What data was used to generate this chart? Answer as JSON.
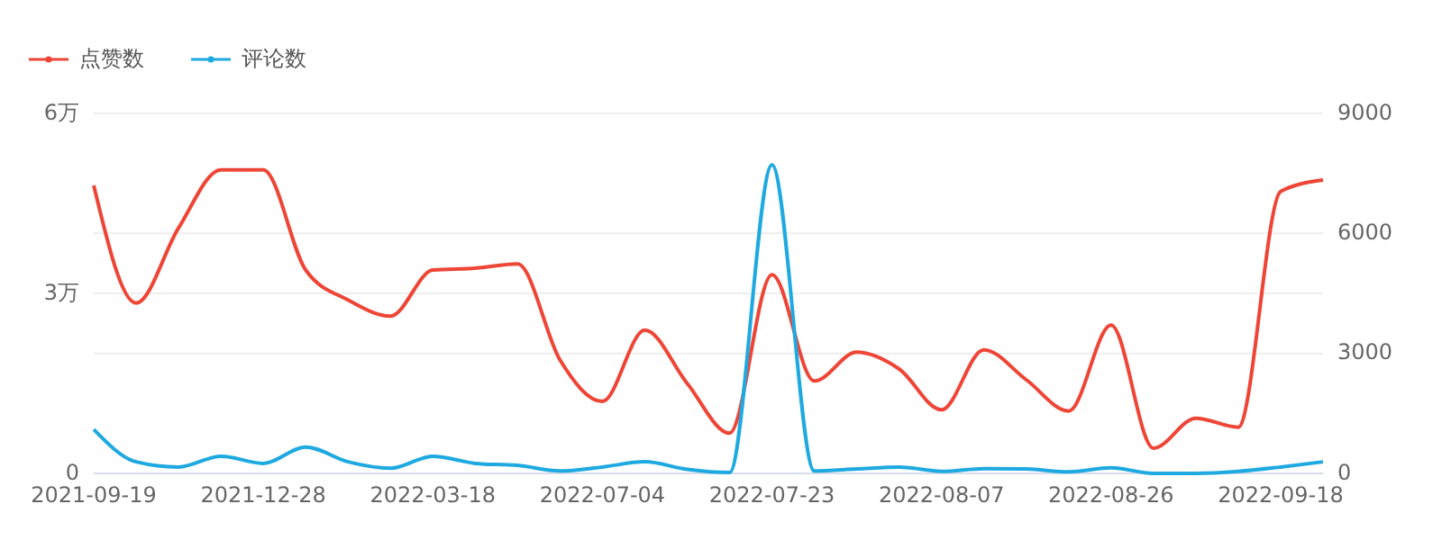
{
  "chart_data": {
    "type": "line",
    "categories": [
      "2021-09-19",
      null,
      null,
      null,
      "2021-12-28",
      null,
      null,
      null,
      "2022-03-18",
      null,
      null,
      null,
      "2022-07-04",
      null,
      null,
      null,
      "2022-07-23",
      null,
      null,
      null,
      "2022-08-07",
      null,
      null,
      null,
      "2022-08-26",
      null,
      null,
      null,
      "2022-09-18",
      null
    ],
    "series": [
      {
        "name": "点赞数",
        "color": "#ee4536",
        "values": [
          4.8,
          2.84,
          4.09,
          5.06,
          5.06,
          3.39,
          2.89,
          2.62,
          3.39,
          3.42,
          3.49,
          1.89,
          1.2,
          2.39,
          1.5,
          0.67,
          3.31,
          1.54,
          2.02,
          1.74,
          1.06,
          2.06,
          1.56,
          1.04,
          2.47,
          0.42,
          0.92,
          0.77,
          4.7,
          4.89
        ]
      },
      {
        "name": "评论数",
        "color": "#1ea9e1",
        "axis": "y2",
        "values": [
          1100,
          290,
          160,
          430,
          250,
          660,
          290,
          130,
          430,
          250,
          200,
          60,
          160,
          290,
          100,
          20,
          7710,
          60,
          110,
          160,
          50,
          120,
          110,
          40,
          140,
          0,
          0,
          50,
          160,
          290
        ]
      }
    ],
    "ylim": [
      0,
      6
    ],
    "yticks": [
      0,
      {
        "value": 3,
        "label": "3万"
      },
      {
        "value": 6,
        "label": "6万"
      }
    ],
    "y2lim": [
      0,
      9000
    ],
    "y2ticks": [
      0,
      3000,
      6000,
      9000
    ],
    "grid": true,
    "legend": "top left",
    "line_style": "solid"
  }
}
